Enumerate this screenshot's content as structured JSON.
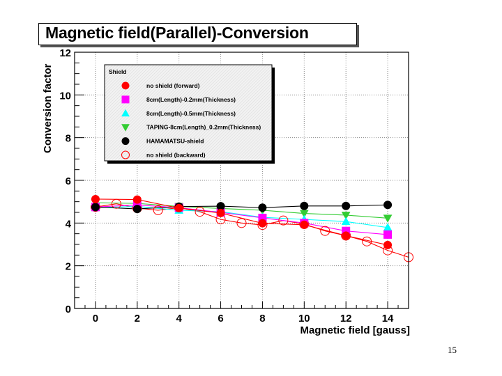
{
  "page": {
    "title": "Magnetic field(Parallel)-Conversion",
    "page_number": "15"
  },
  "chart_data": {
    "type": "line",
    "title": "Magnetic field(Parallel)-Conversion",
    "xlabel": "Magnetic field [gauss]",
    "ylabel": "Conversion factor",
    "xlim": [
      -1,
      15
    ],
    "ylim": [
      0,
      12
    ],
    "x_ticks": [
      0,
      2,
      4,
      6,
      8,
      10,
      12,
      14
    ],
    "x_tick_labels": [
      "0",
      "2",
      "4",
      "6",
      "8",
      "10",
      "12",
      "14"
    ],
    "y_ticks": [
      0,
      2,
      4,
      6,
      8,
      10,
      12
    ],
    "y_tick_labels": [
      "0",
      "2",
      "4",
      "6",
      "8",
      "10",
      "12"
    ],
    "grid": true,
    "legend": {
      "title": "Shield",
      "placement": "top-left"
    },
    "series": [
      {
        "name": "no shield (forward)",
        "marker": "circle",
        "filled": true,
        "color": "#ff0000",
        "x": [
          0,
          2,
          4,
          6,
          8,
          10,
          12,
          14
        ],
        "y": [
          5.12,
          5.1,
          4.7,
          4.47,
          3.99,
          3.92,
          3.41,
          2.97
        ]
      },
      {
        "name": "8cm(Length)-0.2mm(Thickness)",
        "marker": "square",
        "filled": true,
        "color": "#ff00ff",
        "x": [
          0,
          2,
          4,
          6,
          8,
          10,
          12,
          14
        ],
        "y": [
          4.75,
          4.85,
          4.72,
          4.5,
          4.24,
          4.0,
          3.63,
          3.46
        ]
      },
      {
        "name": "8cm(Length)-0.5mm(Thickness)",
        "marker": "triangle-up",
        "filled": true,
        "color": "#00ffff",
        "x": [
          0,
          2,
          4,
          6,
          8,
          10,
          12,
          14
        ],
        "y": [
          4.72,
          4.78,
          4.6,
          4.53,
          4.27,
          4.17,
          4.07,
          3.79
        ]
      },
      {
        "name": "TAPING-8cm(Length)_0.2mm(Thickness)",
        "marker": "triangle-down",
        "filled": true,
        "color": "#33cc33",
        "x": [
          0,
          2,
          4,
          6,
          8,
          10,
          12,
          14
        ],
        "y": [
          4.95,
          4.92,
          4.78,
          4.68,
          4.6,
          4.45,
          4.37,
          4.23
        ]
      },
      {
        "name": "HAMAMATSU-shield",
        "marker": "circle",
        "filled": true,
        "color": "#000000",
        "x": [
          0,
          2,
          4,
          6,
          8,
          10,
          12,
          14
        ],
        "y": [
          4.75,
          4.66,
          4.77,
          4.79,
          4.72,
          4.8,
          4.8,
          4.85
        ]
      },
      {
        "name": "no shield (backward)",
        "marker": "circle",
        "filled": false,
        "color": "#ff0000",
        "x": [
          0,
          1,
          2,
          3,
          4,
          5,
          6,
          7,
          8,
          9,
          10,
          11,
          12,
          13,
          14,
          15
        ],
        "y": [
          4.75,
          4.9,
          4.7,
          4.6,
          4.72,
          4.53,
          4.17,
          4.0,
          3.91,
          4.12,
          3.95,
          3.63,
          3.41,
          3.14,
          2.72,
          2.4
        ]
      }
    ]
  }
}
